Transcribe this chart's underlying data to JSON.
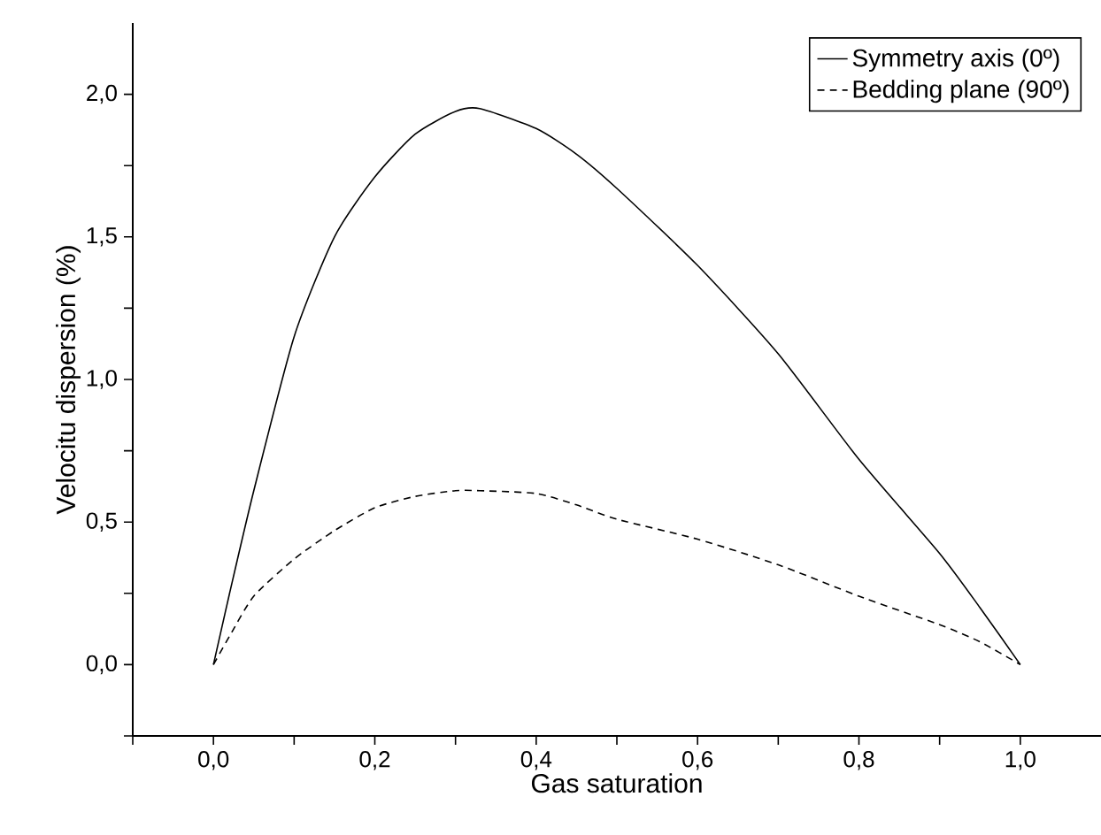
{
  "chart_data": {
    "type": "line",
    "xlabel": "Gas saturation",
    "ylabel": "Velocitu dispersion (%)",
    "xlim": [
      -0.1,
      1.1
    ],
    "ylim": [
      -0.25,
      2.25
    ],
    "xticks": [
      {
        "value": -0.1,
        "label": null
      },
      {
        "value": 0,
        "label": "0,0"
      },
      {
        "value": 0.1,
        "label": null
      },
      {
        "value": 0.2,
        "label": "0,2"
      },
      {
        "value": 0.3,
        "label": null
      },
      {
        "value": 0.4,
        "label": "0,4"
      },
      {
        "value": 0.5,
        "label": null
      },
      {
        "value": 0.6,
        "label": "0,6"
      },
      {
        "value": 0.7,
        "label": null
      },
      {
        "value": 0.8,
        "label": "0,8"
      },
      {
        "value": 0.9,
        "label": null
      },
      {
        "value": 1.0,
        "label": "1,0"
      }
    ],
    "yticks": [
      {
        "value": -0.25,
        "label": null
      },
      {
        "value": 0,
        "label": "0,0"
      },
      {
        "value": 0.25,
        "label": null
      },
      {
        "value": 0.5,
        "label": "0,5"
      },
      {
        "value": 0.75,
        "label": null
      },
      {
        "value": 1.0,
        "label": "1,0"
      },
      {
        "value": 1.25,
        "label": null
      },
      {
        "value": 1.5,
        "label": "1,5"
      },
      {
        "value": 1.75,
        "label": null
      },
      {
        "value": 2.0,
        "label": "2,0"
      }
    ],
    "x": [
      0,
      0.02,
      0.05,
      0.1,
      0.15,
      0.2,
      0.25,
      0.3,
      0.33,
      0.4,
      0.45,
      0.5,
      0.6,
      0.7,
      0.8,
      0.9,
      0.95,
      1.0
    ],
    "legend": "top right",
    "grid": false,
    "series": [
      {
        "name": "Symmetry axis (0º)",
        "color": "#000000",
        "line_style": "solid",
        "values": [
          0,
          0.25,
          0.61,
          1.15,
          1.5,
          1.71,
          1.86,
          1.94,
          1.95,
          1.88,
          1.79,
          1.67,
          1.4,
          1.09,
          0.72,
          0.39,
          0.2,
          0
        ]
      },
      {
        "name": "Bedding plane (90º)",
        "color": "#000000",
        "line_style": "dashed",
        "values": [
          0,
          0.1,
          0.24,
          0.37,
          0.47,
          0.55,
          0.59,
          0.61,
          0.61,
          0.6,
          0.56,
          0.51,
          0.44,
          0.35,
          0.24,
          0.14,
          0.08,
          0
        ]
      }
    ]
  }
}
